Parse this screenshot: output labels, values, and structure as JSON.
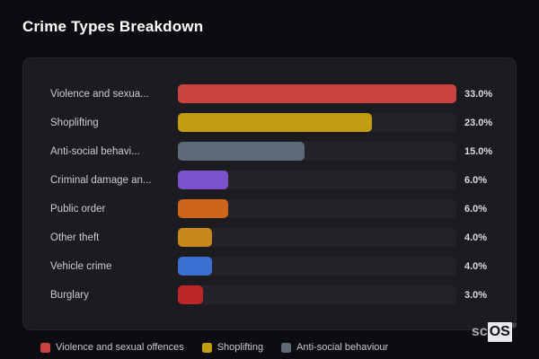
{
  "page": {
    "title": "Crime Types Breakdown"
  },
  "chart_data": {
    "type": "bar",
    "orientation": "horizontal",
    "title": "Crime Types Breakdown",
    "categories": [
      "Violence and sexua...",
      "Shoplifting",
      "Anti-social behavi...",
      "Criminal damage an...",
      "Public order",
      "Other theft",
      "Vehicle crime",
      "Burglary"
    ],
    "values": [
      33.0,
      23.0,
      15.0,
      6.0,
      6.0,
      4.0,
      4.0,
      3.0
    ],
    "value_labels": [
      "33.0%",
      "23.0%",
      "15.0%",
      "6.0%",
      "6.0%",
      "4.0%",
      "4.0%",
      "3.0%"
    ],
    "colors": [
      "#c94441",
      "#c39d11",
      "#5f6a79",
      "#7a52cc",
      "#cd651d",
      "#c8891a",
      "#3b6fd2",
      "#bf2628"
    ],
    "track_color": "#232329",
    "xlim": [
      0,
      33
    ],
    "grid": false,
    "legend": {
      "position": "bottom",
      "entries": [
        {
          "label": "Violence and sexual offences",
          "color": "#c94441"
        },
        {
          "label": "Shoplifting",
          "color": "#c39d11"
        },
        {
          "label": "Anti-social behaviour",
          "color": "#5f6a79"
        }
      ]
    }
  },
  "logo": {
    "prefix": "sc",
    "suffix": "OS",
    "registered": "®"
  },
  "theme": {
    "background": "#0d0d11",
    "card_background": "#1b1b20",
    "label_color": "#c9cdd4",
    "value_color": "#dcdcde",
    "title_color": "#ffffff"
  }
}
